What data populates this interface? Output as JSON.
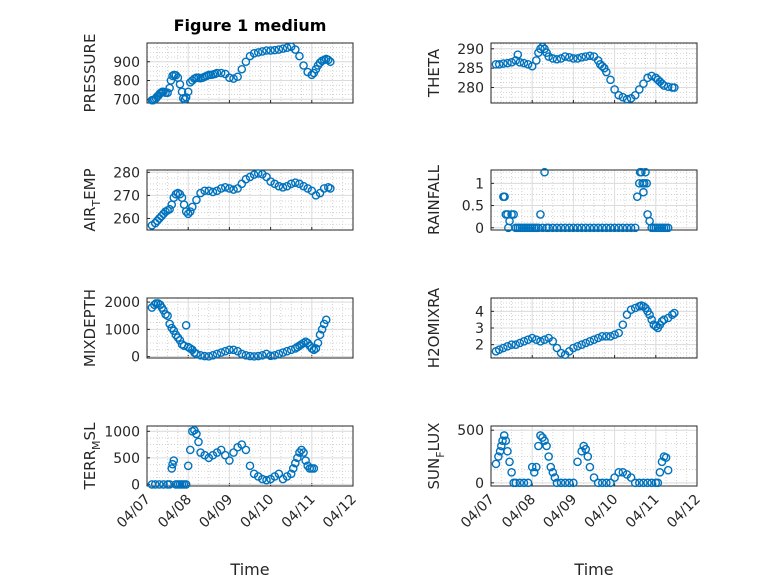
{
  "figure": {
    "title": "Figure 1 medium",
    "xlabel": "Time",
    "marker_color": "#0072BD"
  },
  "chart_data": [
    {
      "type": "scatter",
      "ylabel": "PRESSURE",
      "xlim": [
        "04/07",
        "04/12"
      ],
      "xticks": [
        "04/07",
        "04/08",
        "04/09",
        "04/10",
        "04/11",
        "04/12"
      ],
      "ylim": [
        680,
        1000
      ],
      "yticks": [
        700,
        800,
        900
      ],
      "x": [
        0.12,
        0.15,
        0.18,
        0.22,
        0.25,
        0.28,
        0.31,
        0.34,
        0.37,
        0.4,
        0.45,
        0.5,
        0.55,
        0.58,
        0.62,
        0.66,
        0.7,
        0.75,
        0.8,
        0.85,
        0.88,
        0.92,
        0.95,
        1.0,
        1.05,
        1.1,
        1.15,
        1.2,
        1.25,
        1.3,
        1.35,
        1.4,
        1.45,
        1.5,
        1.55,
        1.6,
        1.65,
        1.7,
        1.8,
        1.9,
        2.0,
        2.1,
        2.2,
        2.3,
        2.4,
        2.5,
        2.6,
        2.7,
        2.8,
        2.9,
        3.0,
        3.1,
        3.2,
        3.3,
        3.4,
        3.5,
        3.6,
        3.7,
        3.8,
        3.9,
        4.0,
        4.05,
        4.1,
        4.15,
        4.2,
        4.25,
        4.3,
        4.35,
        4.4,
        4.45
      ],
      "y": [
        695,
        695,
        700,
        705,
        715,
        720,
        730,
        735,
        740,
        740,
        735,
        735,
        760,
        800,
        825,
        830,
        828,
        815,
        780,
        740,
        705,
        700,
        710,
        740,
        790,
        800,
        810,
        815,
        815,
        812,
        815,
        820,
        825,
        830,
        830,
        832,
        835,
        840,
        840,
        835,
        815,
        810,
        820,
        860,
        900,
        930,
        945,
        950,
        955,
        960,
        960,
        962,
        965,
        970,
        975,
        980,
        965,
        930,
        880,
        845,
        830,
        840,
        860,
        880,
        895,
        905,
        910,
        915,
        910,
        900
      ]
    },
    {
      "type": "scatter",
      "ylabel": "THETA",
      "xlim": [
        "04/07",
        "04/12"
      ],
      "xticks": [
        "04/07",
        "04/08",
        "04/09",
        "04/10",
        "04/11",
        "04/12"
      ],
      "ylim": [
        276,
        291.5
      ],
      "yticks": [
        280,
        285,
        290
      ],
      "x": [
        0.12,
        0.2,
        0.3,
        0.4,
        0.5,
        0.6,
        0.65,
        0.7,
        0.8,
        0.9,
        1.0,
        1.1,
        1.15,
        1.2,
        1.25,
        1.3,
        1.35,
        1.4,
        1.5,
        1.6,
        1.7,
        1.8,
        1.9,
        2.0,
        2.1,
        2.2,
        2.3,
        2.4,
        2.5,
        2.6,
        2.65,
        2.7,
        2.75,
        2.8,
        2.9,
        3.0,
        3.1,
        3.2,
        3.3,
        3.4,
        3.5,
        3.6,
        3.7,
        3.8,
        3.9,
        4.0,
        4.05,
        4.1,
        4.15,
        4.2,
        4.3,
        4.4,
        4.45
      ],
      "y": [
        286,
        286,
        286.2,
        286.3,
        286.5,
        287,
        288.5,
        286.5,
        286.3,
        286,
        285.5,
        287,
        289,
        290,
        290.5,
        290,
        289,
        288,
        287.5,
        287.3,
        287.5,
        288,
        287.8,
        287.5,
        287.5,
        287.8,
        288,
        288.2,
        288,
        287,
        286,
        285.5,
        285,
        284,
        282,
        279.5,
        278,
        277.5,
        277,
        277.2,
        278,
        279.5,
        281,
        282.5,
        283,
        282.5,
        282,
        281.5,
        281,
        280.5,
        280.2,
        280,
        280
      ]
    },
    {
      "type": "scatter",
      "ylabel": "AIR_TEMP",
      "xlim": [
        "04/07",
        "04/12"
      ],
      "xticks": [
        "04/07",
        "04/08",
        "04/09",
        "04/10",
        "04/11",
        "04/12"
      ],
      "ylim": [
        255,
        281
      ],
      "yticks": [
        260,
        270,
        280
      ],
      "x": [
        0.12,
        0.2,
        0.25,
        0.3,
        0.35,
        0.4,
        0.45,
        0.5,
        0.55,
        0.6,
        0.65,
        0.7,
        0.75,
        0.8,
        0.85,
        0.9,
        0.95,
        1.0,
        1.05,
        1.1,
        1.2,
        1.3,
        1.4,
        1.5,
        1.6,
        1.7,
        1.8,
        1.9,
        2.0,
        2.1,
        2.2,
        2.3,
        2.4,
        2.5,
        2.6,
        2.7,
        2.8,
        2.9,
        3.0,
        3.1,
        3.2,
        3.3,
        3.4,
        3.5,
        3.6,
        3.7,
        3.8,
        3.9,
        4.0,
        4.1,
        4.2,
        4.3,
        4.4,
        4.45
      ],
      "y": [
        257,
        258,
        259,
        260,
        261,
        262,
        263,
        263.5,
        264,
        266,
        269,
        270.5,
        271,
        270.5,
        269,
        266,
        263,
        262,
        263,
        265,
        268,
        271,
        272,
        272,
        271.5,
        272,
        273,
        273.5,
        273,
        272.5,
        273,
        275,
        277,
        278,
        279,
        279.5,
        279.2,
        278,
        276,
        275,
        274,
        273.5,
        274,
        275,
        275.5,
        275,
        274,
        273,
        272,
        270,
        271,
        273,
        273.5,
        273
      ]
    },
    {
      "type": "scatter",
      "ylabel": "RAINFALL",
      "xlim": [
        "04/07",
        "04/12"
      ],
      "xticks": [
        "04/07",
        "04/08",
        "04/09",
        "04/10",
        "04/11",
        "04/12"
      ],
      "ylim": [
        -0.05,
        1.3
      ],
      "yticks": [
        0,
        0.5,
        1
      ],
      "x": [
        0.3,
        0.33,
        0.36,
        0.4,
        0.42,
        0.45,
        0.5,
        0.55,
        0.6,
        0.65,
        0.7,
        0.75,
        0.8,
        0.85,
        0.9,
        0.95,
        1.0,
        1.05,
        1.1,
        1.15,
        1.2,
        1.25,
        1.3,
        1.35,
        1.4,
        1.5,
        1.6,
        1.7,
        1.8,
        1.9,
        2.0,
        2.1,
        2.2,
        2.3,
        2.4,
        2.5,
        2.6,
        2.7,
        2.8,
        2.9,
        3.0,
        3.1,
        3.2,
        3.3,
        3.4,
        3.5,
        3.55,
        3.6,
        3.62,
        3.65,
        3.68,
        3.7,
        3.72,
        3.75,
        3.78,
        3.8,
        3.85,
        3.9,
        3.95,
        4.0,
        4.05,
        4.1,
        4.15,
        4.2,
        4.25,
        4.3
      ],
      "y": [
        0.7,
        0.7,
        0.3,
        0.3,
        0,
        0.15,
        0.3,
        0.3,
        0,
        0,
        0,
        0,
        0,
        0,
        0,
        0,
        0,
        0,
        0,
        0,
        0.3,
        0,
        1.25,
        0,
        0,
        0,
        0,
        0,
        0,
        0,
        0,
        0,
        0,
        0,
        0,
        0,
        0,
        0,
        0,
        0,
        0,
        0,
        0,
        0,
        0,
        0,
        0.7,
        1.0,
        1.25,
        1.25,
        1.0,
        0.8,
        1.0,
        1.25,
        1.0,
        0.3,
        0.15,
        0,
        0,
        0,
        0,
        0,
        0,
        0,
        0,
        0
      ]
    },
    {
      "type": "scatter",
      "ylabel": "MIXDEPTH",
      "xlim": [
        "04/07",
        "04/12"
      ],
      "xticks": [
        "04/07",
        "04/08",
        "04/09",
        "04/10",
        "04/11",
        "04/12"
      ],
      "ylim": [
        -50,
        2150
      ],
      "yticks": [
        0,
        1000,
        2000
      ],
      "x": [
        0.12,
        0.18,
        0.22,
        0.27,
        0.32,
        0.36,
        0.4,
        0.45,
        0.5,
        0.55,
        0.6,
        0.65,
        0.7,
        0.75,
        0.8,
        0.85,
        0.9,
        0.95,
        1.0,
        1.05,
        1.1,
        1.15,
        1.2,
        1.3,
        1.4,
        1.5,
        1.6,
        1.7,
        1.8,
        1.9,
        2.0,
        2.1,
        2.2,
        2.3,
        2.4,
        2.5,
        2.6,
        2.7,
        2.8,
        2.9,
        3.0,
        3.1,
        3.2,
        3.3,
        3.4,
        3.5,
        3.6,
        3.65,
        3.7,
        3.75,
        3.8,
        3.85,
        3.9,
        3.95,
        4.0,
        4.05,
        4.1,
        4.15,
        4.2,
        4.25,
        4.3,
        4.35
      ],
      "y": [
        1800,
        1900,
        1950,
        1950,
        1900,
        1800,
        1700,
        1550,
        1500,
        1200,
        1050,
        950,
        800,
        700,
        600,
        450,
        400,
        1150,
        350,
        300,
        250,
        150,
        100,
        50,
        20,
        10,
        50,
        100,
        150,
        200,
        250,
        250,
        200,
        100,
        50,
        20,
        10,
        20,
        50,
        100,
        30,
        50,
        100,
        150,
        200,
        250,
        300,
        350,
        400,
        450,
        500,
        550,
        500,
        400,
        300,
        250,
        300,
        500,
        800,
        1000,
        1200,
        1350
      ]
    },
    {
      "type": "scatter",
      "ylabel": "H2OMIXRA",
      "xlim": [
        "04/07",
        "04/12"
      ],
      "xticks": [
        "04/07",
        "04/08",
        "04/09",
        "04/10",
        "04/11",
        "04/12"
      ],
      "ylim": [
        1.2,
        4.8
      ],
      "yticks": [
        2,
        3,
        4
      ],
      "x": [
        0.12,
        0.2,
        0.3,
        0.4,
        0.5,
        0.6,
        0.7,
        0.8,
        0.9,
        1.0,
        1.1,
        1.2,
        1.3,
        1.4,
        1.5,
        1.6,
        1.7,
        1.8,
        1.9,
        2.0,
        2.1,
        2.2,
        2.3,
        2.4,
        2.5,
        2.6,
        2.7,
        2.8,
        2.9,
        3.0,
        3.1,
        3.2,
        3.3,
        3.4,
        3.5,
        3.6,
        3.65,
        3.7,
        3.75,
        3.8,
        3.85,
        3.9,
        3.95,
        4.0,
        4.05,
        4.1,
        4.15,
        4.2,
        4.3,
        4.4,
        4.45
      ],
      "y": [
        1.6,
        1.7,
        1.8,
        1.9,
        2.0,
        2.0,
        2.1,
        2.2,
        2.3,
        2.4,
        2.3,
        2.2,
        2.3,
        2.4,
        2.2,
        1.8,
        1.5,
        1.4,
        1.6,
        1.8,
        1.9,
        2.0,
        2.1,
        2.2,
        2.3,
        2.4,
        2.5,
        2.5,
        2.5,
        2.6,
        2.7,
        3.2,
        3.8,
        4.1,
        4.2,
        4.3,
        4.35,
        4.3,
        4.2,
        4.0,
        3.8,
        3.5,
        3.2,
        3.1,
        3.0,
        3.2,
        3.4,
        3.5,
        3.6,
        3.8,
        3.9
      ]
    },
    {
      "type": "scatter",
      "ylabel": "TERR_MSL",
      "xlim": [
        "04/07",
        "04/12"
      ],
      "xticks": [
        "04/07",
        "04/08",
        "04/09",
        "04/10",
        "04/11",
        "04/12"
      ],
      "ylim": [
        -30,
        1100
      ],
      "yticks": [
        0,
        500,
        1000
      ],
      "x": [
        0.12,
        0.2,
        0.3,
        0.4,
        0.5,
        0.55,
        0.6,
        0.62,
        0.65,
        0.7,
        0.75,
        0.8,
        0.85,
        0.9,
        0.95,
        1.0,
        1.05,
        1.1,
        1.15,
        1.2,
        1.25,
        1.3,
        1.4,
        1.5,
        1.6,
        1.7,
        1.8,
        1.9,
        2.0,
        2.1,
        2.2,
        2.3,
        2.4,
        2.5,
        2.6,
        2.7,
        2.8,
        2.9,
        3.0,
        3.1,
        3.2,
        3.3,
        3.4,
        3.5,
        3.55,
        3.6,
        3.65,
        3.7,
        3.75,
        3.8,
        3.85,
        3.9,
        3.95,
        4.0,
        4.05
      ],
      "y": [
        0,
        0,
        0,
        0,
        0,
        0,
        300,
        380,
        450,
        0,
        0,
        0,
        0,
        0,
        0,
        350,
        650,
        1000,
        1020,
        950,
        800,
        600,
        550,
        500,
        550,
        600,
        650,
        550,
        450,
        600,
        700,
        750,
        650,
        350,
        200,
        150,
        100,
        80,
        100,
        150,
        200,
        100,
        150,
        200,
        300,
        400,
        500,
        600,
        650,
        600,
        450,
        350,
        300,
        300,
        300
      ]
    },
    {
      "type": "scatter",
      "ylabel": "SUN_FLUX",
      "xlim": [
        "04/07",
        "04/12"
      ],
      "xticks": [
        "04/07",
        "04/08",
        "04/09",
        "04/10",
        "04/11",
        "04/12"
      ],
      "ylim": [
        -30,
        540
      ],
      "yticks": [
        0,
        500
      ],
      "x": [
        0.12,
        0.18,
        0.22,
        0.25,
        0.28,
        0.32,
        0.36,
        0.4,
        0.45,
        0.5,
        0.55,
        0.6,
        0.7,
        0.8,
        0.9,
        1.0,
        1.05,
        1.1,
        1.15,
        1.2,
        1.25,
        1.3,
        1.35,
        1.4,
        1.45,
        1.5,
        1.55,
        1.6,
        1.7,
        1.8,
        1.9,
        2.0,
        2.1,
        2.2,
        2.25,
        2.3,
        2.35,
        2.4,
        2.5,
        2.6,
        2.7,
        2.8,
        2.9,
        3.0,
        3.1,
        3.2,
        3.3,
        3.4,
        3.5,
        3.6,
        3.7,
        3.8,
        3.9,
        4.0,
        4.05,
        4.1,
        4.15,
        4.2,
        4.25,
        4.3
      ],
      "y": [
        180,
        250,
        300,
        350,
        400,
        450,
        400,
        300,
        200,
        100,
        0,
        0,
        0,
        0,
        0,
        150,
        100,
        150,
        350,
        450,
        430,
        400,
        350,
        250,
        150,
        100,
        50,
        0,
        0,
        0,
        0,
        0,
        200,
        300,
        350,
        320,
        250,
        150,
        50,
        0,
        0,
        0,
        0,
        50,
        100,
        100,
        80,
        50,
        0,
        0,
        0,
        0,
        0,
        0,
        0,
        100,
        200,
        250,
        240,
        120
      ]
    }
  ]
}
